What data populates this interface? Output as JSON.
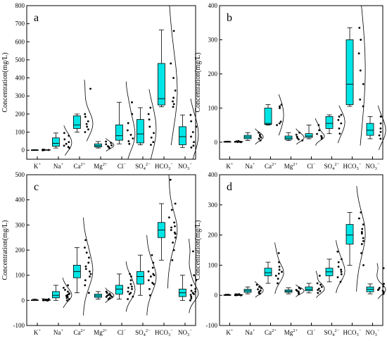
{
  "figure": {
    "colors": {
      "box": "#00e5e5",
      "stroke": "#000000",
      "axis": "#000000"
    }
  },
  "chart_data": [
    {
      "type": "box",
      "panel_label": "a",
      "ylabel": "Concentration(mg/L)",
      "ylim": [
        -50,
        800
      ],
      "yticks": [
        0,
        100,
        200,
        300,
        400,
        500,
        600,
        700,
        800
      ],
      "grid": false,
      "categories": [
        {
          "label": "K",
          "sup": "+"
        },
        {
          "label": "Na",
          "sup": "+"
        },
        {
          "label": "Ca",
          "sup": "2+"
        },
        {
          "label": "Mg",
          "sup": "2+"
        },
        {
          "label": "Cl",
          "sup": "−"
        },
        {
          "label": "SO",
          "sub": "4",
          "sup": "2−"
        },
        {
          "label": "HCO",
          "sub": "3",
          "sup": "−"
        },
        {
          "label": "NO",
          "sub": "3",
          "sup": "−"
        }
      ],
      "boxes": [
        {
          "whisker_low": 0,
          "q1": 0,
          "median": 1,
          "q3": 2,
          "whisker_high": 3,
          "points": [
            0,
            1,
            1,
            2,
            2,
            3,
            1,
            0
          ]
        },
        {
          "whisker_low": 12,
          "q1": 22,
          "median": 38,
          "q3": 68,
          "whisker_high": 95,
          "points": [
            12,
            18,
            25,
            35,
            45,
            60,
            80,
            95
          ]
        },
        {
          "whisker_low": 100,
          "q1": 120,
          "median": 140,
          "q3": 190,
          "whisker_high": 200,
          "points": [
            100,
            115,
            130,
            145,
            160,
            185,
            200,
            340
          ]
        },
        {
          "whisker_low": 12,
          "q1": 18,
          "median": 25,
          "q3": 35,
          "whisker_high": 48,
          "points": [
            12,
            18,
            22,
            27,
            33,
            40,
            48
          ]
        },
        {
          "whisker_low": 35,
          "q1": 55,
          "median": 80,
          "q3": 140,
          "whisker_high": 265,
          "points": [
            35,
            50,
            65,
            85,
            110,
            150,
            200,
            265
          ]
        },
        {
          "whisker_low": 30,
          "q1": 40,
          "median": 90,
          "q3": 170,
          "whisker_high": 235,
          "points": [
            30,
            45,
            70,
            95,
            130,
            170,
            200,
            235
          ]
        },
        {
          "whisker_low": 240,
          "q1": 250,
          "median": 285,
          "q3": 480,
          "whisker_high": 665,
          "points": [
            240,
            255,
            270,
            290,
            330,
            400,
            480,
            660
          ]
        },
        {
          "whisker_low": 15,
          "q1": 30,
          "median": 75,
          "q3": 130,
          "whisker_high": 195,
          "points": [
            15,
            25,
            45,
            75,
            100,
            130,
            160,
            195
          ]
        }
      ]
    },
    {
      "type": "box",
      "panel_label": "b",
      "ylabel": "Concentration(mg/L)",
      "ylim": [
        -50,
        400
      ],
      "yticks": [
        0,
        100,
        200,
        300,
        400
      ],
      "grid": false,
      "categories": [
        {
          "label": "K",
          "sup": "+"
        },
        {
          "label": "Na",
          "sup": "+"
        },
        {
          "label": "Ca",
          "sup": "2+"
        },
        {
          "label": "Mg",
          "sup": "2+"
        },
        {
          "label": "Cl",
          "sup": "−"
        },
        {
          "label": "SO",
          "sub": "4",
          "sup": "2−"
        },
        {
          "label": "HCO",
          "sub": "3",
          "sup": "−"
        },
        {
          "label": "NO",
          "sub": "3",
          "sup": "−"
        }
      ],
      "boxes": [
        {
          "whisker_low": 0,
          "q1": 0,
          "median": 1,
          "q3": 2,
          "whisker_high": 3,
          "points": [
            0,
            1,
            1,
            2,
            3,
            1
          ]
        },
        {
          "whisker_low": 5,
          "q1": 10,
          "median": 15,
          "q3": 20,
          "whisker_high": 28,
          "points": [
            5,
            10,
            14,
            18,
            22,
            28
          ]
        },
        {
          "whisker_low": 50,
          "q1": 52,
          "median": 55,
          "q3": 100,
          "whisker_high": 110,
          "points": [
            50,
            55,
            60,
            100,
            105,
            110
          ]
        },
        {
          "whisker_low": 5,
          "q1": 8,
          "median": 12,
          "q3": 18,
          "whisker_high": 28,
          "points": [
            5,
            8,
            12,
            16,
            22,
            28
          ]
        },
        {
          "whisker_low": 10,
          "q1": 14,
          "median": 18,
          "q3": 25,
          "whisker_high": 50,
          "points": [
            10,
            14,
            18,
            24,
            35,
            50
          ]
        },
        {
          "whisker_low": 25,
          "q1": 40,
          "median": 55,
          "q3": 75,
          "whisker_high": 80,
          "points": [
            25,
            40,
            55,
            65,
            75,
            80
          ]
        },
        {
          "whisker_low": 105,
          "q1": 110,
          "median": 170,
          "q3": 300,
          "whisker_high": 335,
          "points": [
            105,
            125,
            170,
            210,
            260,
            300,
            335
          ]
        },
        {
          "whisker_low": 10,
          "q1": 20,
          "median": 35,
          "q3": 55,
          "whisker_high": 75,
          "points": [
            10,
            20,
            30,
            40,
            55,
            75
          ]
        }
      ]
    },
    {
      "type": "box",
      "panel_label": "c",
      "ylabel": "Concentration(mg/L)",
      "ylim": [
        -100,
        500
      ],
      "yticks": [
        -100,
        0,
        100,
        200,
        300,
        400,
        500
      ],
      "grid": false,
      "categories": [
        {
          "label": "K",
          "sup": "+"
        },
        {
          "label": "Na",
          "sup": "+"
        },
        {
          "label": "Ca",
          "sup": "2+"
        },
        {
          "label": "Mg",
          "sup": "2+"
        },
        {
          "label": "Cl",
          "sup": "−"
        },
        {
          "label": "SO",
          "sub": "4",
          "sup": "2−"
        },
        {
          "label": "HCO",
          "sub": "3",
          "sup": "−"
        },
        {
          "label": "NO",
          "sub": "3",
          "sup": "−"
        }
      ],
      "boxes": [
        {
          "whisker_low": 0,
          "q1": 0,
          "median": 1,
          "q3": 2,
          "whisker_high": 5,
          "points": [
            0,
            0,
            1,
            1,
            2,
            2,
            3,
            4,
            5,
            1,
            0,
            2
          ]
        },
        {
          "whisker_low": 0,
          "q1": 10,
          "median": 20,
          "q3": 35,
          "whisker_high": 60,
          "points": [
            0,
            5,
            10,
            15,
            18,
            22,
            28,
            35,
            42,
            50,
            60,
            12,
            25
          ]
        },
        {
          "whisker_low": 30,
          "q1": 90,
          "median": 115,
          "q3": 140,
          "whisker_high": 210,
          "points": [
            30,
            60,
            80,
            95,
            105,
            115,
            125,
            135,
            150,
            170,
            190,
            210,
            240
          ]
        },
        {
          "whisker_low": 5,
          "q1": 12,
          "median": 18,
          "q3": 25,
          "whisker_high": 35,
          "points": [
            5,
            10,
            14,
            18,
            22,
            26,
            30,
            35,
            15,
            20
          ]
        },
        {
          "whisker_low": 5,
          "q1": 25,
          "median": 45,
          "q3": 60,
          "whisker_high": 105,
          "points": [
            5,
            15,
            25,
            35,
            45,
            55,
            65,
            80,
            95,
            105,
            30,
            50
          ]
        },
        {
          "whisker_low": 20,
          "q1": 65,
          "median": 95,
          "q3": 115,
          "whisker_high": 180,
          "points": [
            20,
            45,
            65,
            80,
            95,
            105,
            115,
            130,
            150,
            180,
            70,
            100
          ]
        },
        {
          "whisker_low": 160,
          "q1": 250,
          "median": 280,
          "q3": 310,
          "whisker_high": 385,
          "points": [
            160,
            200,
            230,
            250,
            265,
            280,
            295,
            310,
            330,
            360,
            385,
            480,
            270,
            290
          ]
        },
        {
          "whisker_low": 0,
          "q1": 15,
          "median": 30,
          "q3": 45,
          "whisker_high": 100,
          "points": [
            0,
            8,
            15,
            22,
            30,
            38,
            45,
            60,
            80,
            100,
            195,
            25,
            35
          ]
        }
      ]
    },
    {
      "type": "box",
      "panel_label": "d",
      "ylabel": "Concentration(mg/L)",
      "ylim": [
        -100,
        400
      ],
      "yticks": [
        -100,
        0,
        100,
        200,
        300,
        400
      ],
      "grid": false,
      "categories": [
        {
          "label": "K",
          "sup": "+"
        },
        {
          "label": "Na",
          "sup": "+"
        },
        {
          "label": "Ca",
          "sup": "2+"
        },
        {
          "label": "Mg",
          "sup": "2+"
        },
        {
          "label": "Cl",
          "sup": "−"
        },
        {
          "label": "SO",
          "sub": "4",
          "sup": "2−"
        },
        {
          "label": "HCO",
          "sub": "3",
          "sup": "−"
        },
        {
          "label": "NO",
          "sub": "3",
          "sup": "−"
        }
      ],
      "boxes": [
        {
          "whisker_low": 0,
          "q1": 0,
          "median": 1,
          "q3": 2,
          "whisker_high": 4,
          "points": [
            0,
            1,
            1,
            2,
            3,
            4,
            2,
            1
          ]
        },
        {
          "whisker_low": 5,
          "q1": 10,
          "median": 15,
          "q3": 20,
          "whisker_high": 28,
          "points": [
            5,
            8,
            12,
            16,
            20,
            24,
            28,
            35
          ]
        },
        {
          "whisker_low": 40,
          "q1": 65,
          "median": 75,
          "q3": 90,
          "whisker_high": 110,
          "points": [
            40,
            55,
            65,
            72,
            78,
            85,
            95,
            110,
            140
          ]
        },
        {
          "whisker_low": 5,
          "q1": 10,
          "median": 14,
          "q3": 18,
          "whisker_high": 25,
          "points": [
            5,
            8,
            12,
            15,
            18,
            22,
            25
          ]
        },
        {
          "whisker_low": 8,
          "q1": 15,
          "median": 20,
          "q3": 28,
          "whisker_high": 40,
          "points": [
            8,
            14,
            18,
            22,
            28,
            35,
            40,
            65
          ]
        },
        {
          "whisker_low": 45,
          "q1": 65,
          "median": 78,
          "q3": 90,
          "whisker_high": 120,
          "points": [
            45,
            60,
            70,
            78,
            85,
            95,
            110,
            120,
            145
          ]
        },
        {
          "whisker_low": 100,
          "q1": 170,
          "median": 200,
          "q3": 235,
          "whisker_high": 275,
          "points": [
            100,
            140,
            170,
            190,
            205,
            220,
            235,
            255,
            275,
            210,
            180
          ]
        },
        {
          "whisker_low": 5,
          "q1": 12,
          "median": 20,
          "q3": 28,
          "whisker_high": 38,
          "points": [
            5,
            10,
            15,
            20,
            25,
            30,
            38,
            90,
            18
          ]
        }
      ]
    }
  ]
}
